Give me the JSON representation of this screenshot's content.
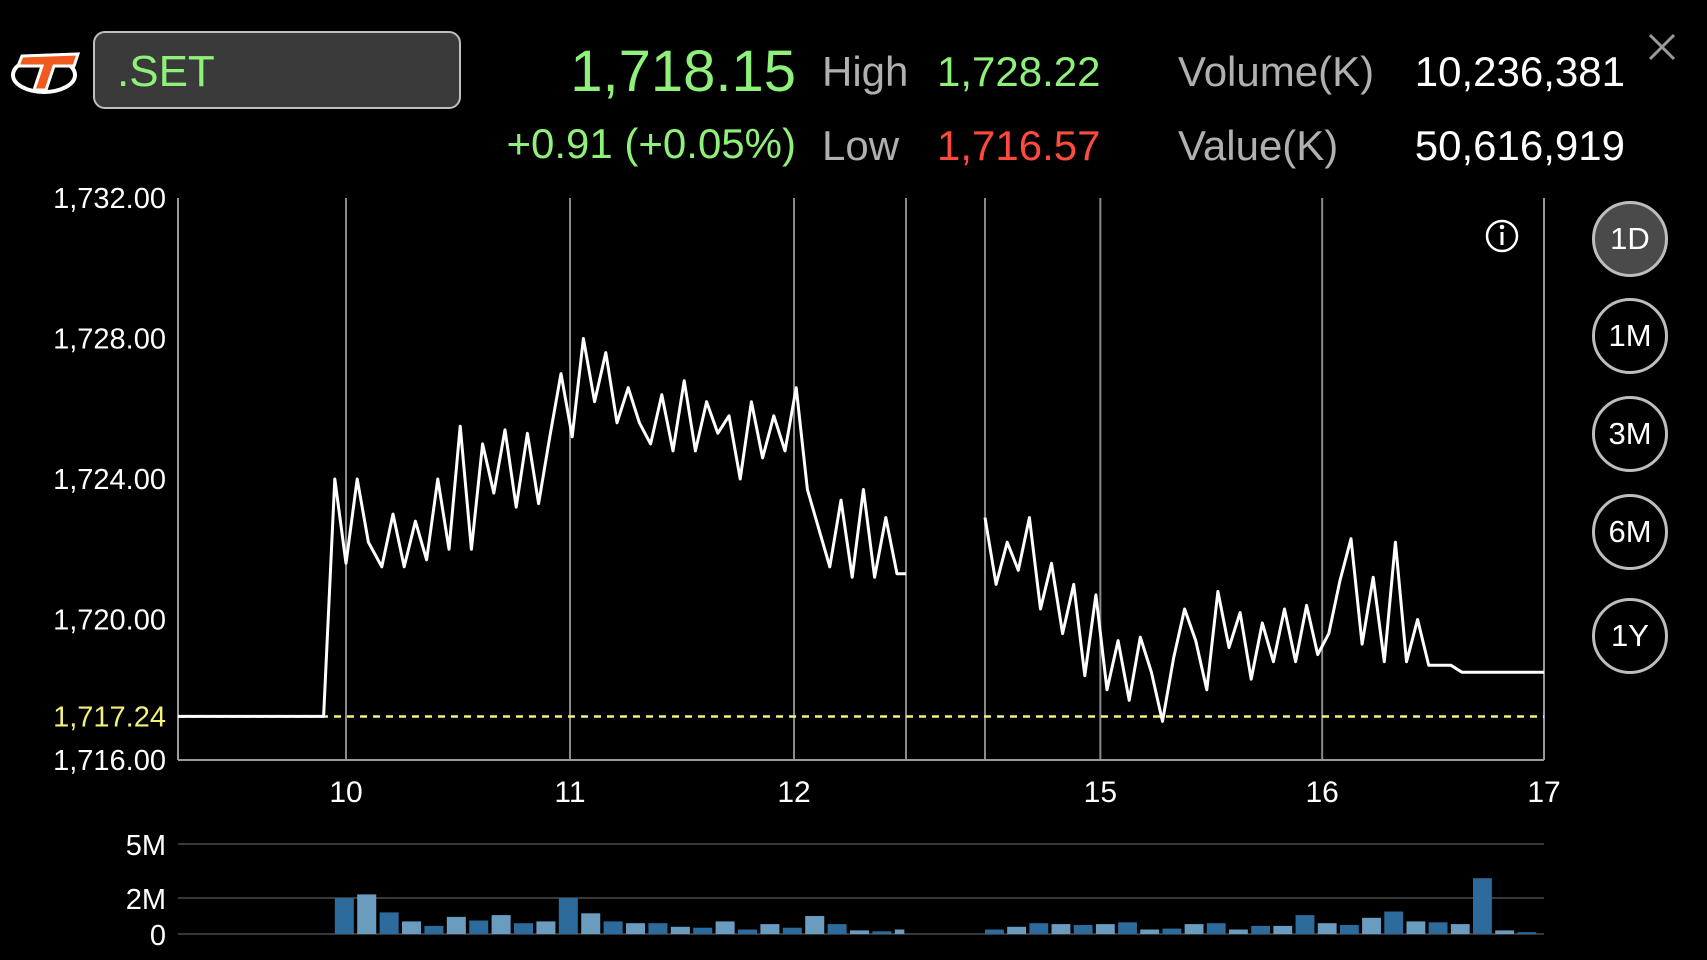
{
  "header": {
    "symbol": ".SET",
    "last_price": "1,718.15",
    "change": "+0.91 (+0.05%)",
    "high_label": "High",
    "high_value": "1,728.22",
    "low_label": "Low",
    "low_value": "1,716.57",
    "volume_label": "Volume(K)",
    "volume_value": "10,236,381",
    "value_label": "Value(K)",
    "value_value": "50,616,919"
  },
  "timeframes": [
    {
      "label": "1D",
      "active": true
    },
    {
      "label": "1M",
      "active": false
    },
    {
      "label": "3M",
      "active": false
    },
    {
      "label": "6M",
      "active": false
    },
    {
      "label": "1Y",
      "active": false
    }
  ],
  "colors": {
    "up": "#8ff07a",
    "down": "#ff4a3d",
    "line": "#ffffff",
    "reference": "#f4f07a",
    "volume_dark": "#2c6b9b",
    "volume_light": "#6a9cc0",
    "brand": "#f05a1e"
  },
  "icons": {
    "logo": "brand-logo",
    "info": "info-icon",
    "close": "close-icon"
  },
  "chart_data": [
    {
      "type": "line",
      "title": "",
      "xlabel": "",
      "ylabel": "",
      "x_ticks": [
        "10",
        "11",
        "12",
        "15",
        "16",
        "17"
      ],
      "x_range": [
        9.25,
        17
      ],
      "ylim": [
        1716,
        1732
      ],
      "y_ticks": [
        "1,732.00",
        "1,728.00",
        "1,724.00",
        "1,720.00",
        "1,716.00"
      ],
      "reference_line": {
        "label": "1,717.24",
        "value": 1717.24
      },
      "grid": "vertical lines at hours",
      "series": [
        {
          "segment": "morning",
          "points": [
            [
              9.25,
              1717.24
            ],
            [
              9.9,
              1717.24
            ],
            [
              9.95,
              1724.0
            ],
            [
              10.0,
              1721.6
            ],
            [
              10.05,
              1724.0
            ],
            [
              10.1,
              1722.2
            ],
            [
              10.16,
              1721.5
            ],
            [
              10.21,
              1723.0
            ],
            [
              10.26,
              1721.5
            ],
            [
              10.31,
              1722.8
            ],
            [
              10.36,
              1721.7
            ],
            [
              10.41,
              1724.0
            ],
            [
              10.46,
              1722.0
            ],
            [
              10.51,
              1725.5
            ],
            [
              10.56,
              1722.0
            ],
            [
              10.61,
              1725.0
            ],
            [
              10.66,
              1723.6
            ],
            [
              10.71,
              1725.4
            ],
            [
              10.76,
              1723.2
            ],
            [
              10.81,
              1725.3
            ],
            [
              10.86,
              1723.3
            ],
            [
              10.91,
              1725.2
            ],
            [
              10.96,
              1727.0
            ],
            [
              11.01,
              1725.2
            ],
            [
              11.06,
              1728.0
            ],
            [
              11.11,
              1726.2
            ],
            [
              11.16,
              1727.6
            ],
            [
              11.21,
              1725.6
            ],
            [
              11.26,
              1726.6
            ],
            [
              11.31,
              1725.6
            ],
            [
              11.36,
              1725.0
            ],
            [
              11.41,
              1726.4
            ],
            [
              11.46,
              1724.8
            ],
            [
              11.51,
              1726.8
            ],
            [
              11.56,
              1724.8
            ],
            [
              11.61,
              1726.2
            ],
            [
              11.66,
              1725.3
            ],
            [
              11.71,
              1725.8
            ],
            [
              11.76,
              1724.0
            ],
            [
              11.81,
              1726.2
            ],
            [
              11.86,
              1724.6
            ],
            [
              11.91,
              1725.8
            ],
            [
              11.96,
              1724.8
            ],
            [
              12.01,
              1726.6
            ],
            [
              12.06,
              1723.7
            ],
            [
              12.11,
              1722.6
            ],
            [
              12.16,
              1721.5
            ],
            [
              12.21,
              1723.4
            ],
            [
              12.26,
              1721.2
            ],
            [
              12.31,
              1723.7
            ],
            [
              12.36,
              1721.2
            ],
            [
              12.41,
              1722.9
            ],
            [
              12.46,
              1721.3
            ],
            [
              12.5,
              1721.3
            ]
          ]
        },
        {
          "segment": "afternoon",
          "points": [
            [
              14.48,
              1722.9
            ],
            [
              14.53,
              1721.0
            ],
            [
              14.58,
              1722.2
            ],
            [
              14.63,
              1721.4
            ],
            [
              14.68,
              1722.9
            ],
            [
              14.73,
              1720.3
            ],
            [
              14.78,
              1721.6
            ],
            [
              14.83,
              1719.6
            ],
            [
              14.88,
              1721.0
            ],
            [
              14.93,
              1718.4
            ],
            [
              14.98,
              1720.7
            ],
            [
              15.03,
              1718.0
            ],
            [
              15.08,
              1719.4
            ],
            [
              15.13,
              1717.7
            ],
            [
              15.18,
              1719.5
            ],
            [
              15.23,
              1718.5
            ],
            [
              15.28,
              1717.1
            ],
            [
              15.33,
              1718.9
            ],
            [
              15.38,
              1720.3
            ],
            [
              15.43,
              1719.4
            ],
            [
              15.48,
              1718.0
            ],
            [
              15.53,
              1720.8
            ],
            [
              15.58,
              1719.2
            ],
            [
              15.63,
              1720.2
            ],
            [
              15.68,
              1718.3
            ],
            [
              15.73,
              1719.9
            ],
            [
              15.78,
              1718.8
            ],
            [
              15.83,
              1720.3
            ],
            [
              15.88,
              1718.8
            ],
            [
              15.93,
              1720.4
            ],
            [
              15.98,
              1719.0
            ],
            [
              16.03,
              1719.6
            ],
            [
              16.08,
              1721.1
            ],
            [
              16.13,
              1722.3
            ],
            [
              16.18,
              1719.3
            ],
            [
              16.23,
              1721.2
            ],
            [
              16.28,
              1718.8
            ],
            [
              16.33,
              1722.2
            ],
            [
              16.38,
              1718.8
            ],
            [
              16.43,
              1720.0
            ],
            [
              16.48,
              1718.7
            ],
            [
              16.58,
              1718.7
            ],
            [
              16.63,
              1718.5
            ],
            [
              17.0,
              1718.5
            ]
          ]
        }
      ]
    },
    {
      "type": "bar",
      "title": "",
      "y_ticks": [
        "5M",
        "2M",
        "0"
      ],
      "ylim": [
        0,
        5
      ],
      "unit": "M",
      "series": [
        {
          "segment": "morning",
          "x_start": 9.95,
          "x_step": 0.1,
          "values": [
            2.0,
            2.2,
            1.2,
            0.7,
            0.45,
            0.95,
            0.75,
            1.05,
            0.6,
            0.7,
            2.0,
            1.15,
            0.7,
            0.6,
            0.6,
            0.4,
            0.35,
            0.7,
            0.25,
            0.55,
            0.35,
            1.0,
            0.55,
            0.2,
            0.15,
            0.25
          ]
        },
        {
          "segment": "afternoon",
          "x_start": 14.48,
          "x_step": 0.1,
          "values": [
            0.25,
            0.4,
            0.6,
            0.55,
            0.5,
            0.55,
            0.65,
            0.25,
            0.3,
            0.55,
            0.6,
            0.25,
            0.45,
            0.45,
            1.05,
            0.6,
            0.5,
            0.9,
            1.25,
            0.7,
            0.65,
            0.55,
            3.1,
            0.2,
            0.1
          ]
        }
      ]
    }
  ]
}
